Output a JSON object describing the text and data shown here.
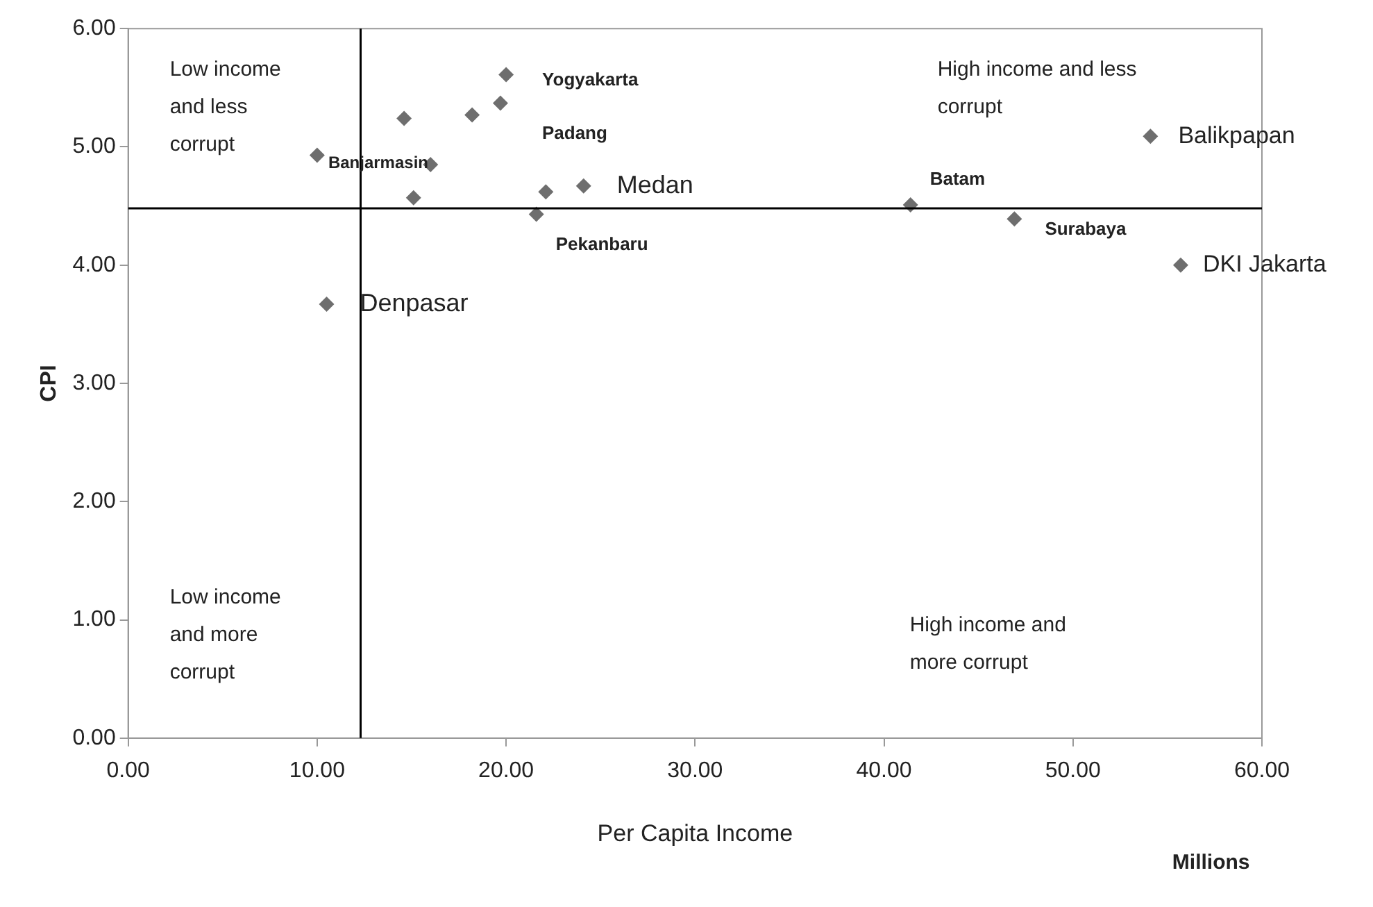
{
  "chart_data": {
    "type": "scatter",
    "xlabel": "Per Capita Income",
    "ylabel": "CPI",
    "x": [
      20.0,
      19.7,
      18.2,
      14.6,
      10.0,
      16.0,
      15.1,
      22.1,
      21.6,
      24.1,
      10.5,
      41.4,
      46.9,
      54.1,
      55.7
    ],
    "values": [
      5.61,
      5.37,
      5.27,
      5.24,
      4.93,
      4.85,
      4.57,
      4.62,
      4.43,
      4.67,
      3.67,
      4.51,
      4.39,
      5.09,
      4.0
    ],
    "color": "#6e6e6e",
    "marker": "diamond",
    "grid": false,
    "legend": false,
    "xlim": [
      0,
      60
    ],
    "xticks": [
      {
        "value": 0,
        "label": "0.00"
      },
      {
        "value": 10,
        "label": "10.00"
      },
      {
        "value": 20,
        "label": "20.00"
      },
      {
        "value": 30,
        "label": "30.00"
      },
      {
        "value": 40,
        "label": "40.00"
      },
      {
        "value": 50,
        "label": "50.00"
      },
      {
        "value": 60,
        "label": "60.00"
      }
    ],
    "ylim": [
      0,
      6
    ],
    "yticks": [
      {
        "value": 0,
        "label": "0.00"
      },
      {
        "value": 1,
        "label": "1.00"
      },
      {
        "value": 2,
        "label": "2.00"
      },
      {
        "value": 3,
        "label": "3.00"
      },
      {
        "value": 4,
        "label": "4.00"
      },
      {
        "value": 5,
        "label": "5.00"
      },
      {
        "value": 6,
        "label": "6.00"
      }
    ],
    "ref_lines": [
      {
        "axis": "x",
        "value": 12.3,
        "color": "#000000"
      },
      {
        "axis": "y",
        "value": 4.48,
        "color": "#000000"
      }
    ],
    "annotations": [
      {
        "text": "Yogyakarta",
        "x": 20.0,
        "y": 5.61
      },
      {
        "text": "Padang",
        "x": 19.7,
        "y": 5.37
      },
      {
        "text": "Banjarmasin",
        "x": 10.0,
        "y": 4.93
      },
      {
        "text": "Medan",
        "x": 24.1,
        "y": 4.67
      },
      {
        "text": "Pekanbaru",
        "x": 21.6,
        "y": 4.43
      },
      {
        "text": "Denpasar",
        "x": 10.5,
        "y": 3.67
      },
      {
        "text": "Batam",
        "x": 41.4,
        "y": 4.51
      },
      {
        "text": "Surabaya",
        "x": 46.9,
        "y": 4.39
      },
      {
        "text": "Balikpapan",
        "x": 54.1,
        "y": 5.09
      },
      {
        "text": "DKI Jakarta",
        "x": 55.7,
        "y": 4.0
      },
      "Low income and less corrupt",
      "High income and less corrupt",
      "Low income and more corrupt",
      "High income and more corrupt",
      "Millions"
    ]
  }
}
